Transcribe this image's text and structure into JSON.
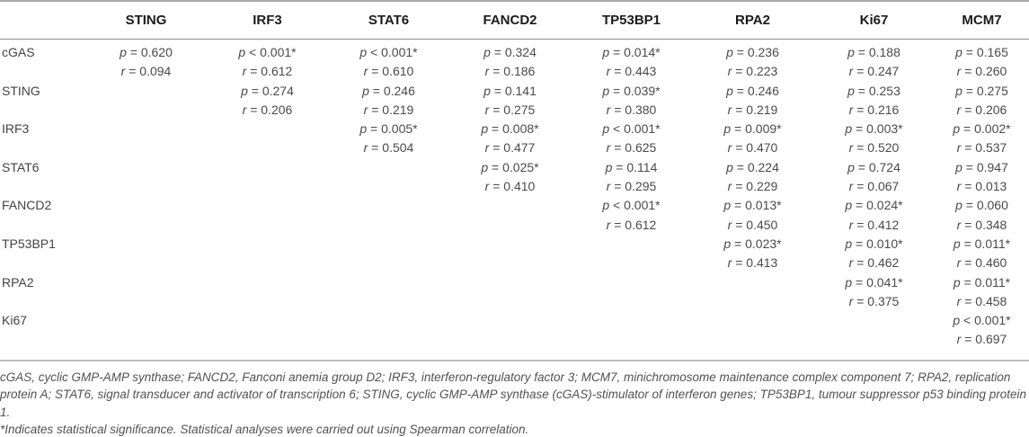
{
  "colors": {
    "background": "#ffffff",
    "header_text": "#1b1b1b",
    "body_text": "#4a4a4a",
    "footnote_text": "#525252",
    "border_top": "#a8a8a8",
    "border_header": "#8f8f8f",
    "border_bottom": "#bcbcbc"
  },
  "table": {
    "corner_label": "",
    "columns": [
      "STING",
      "IRF3",
      "STAT6",
      "FANCD2",
      "TP53BP1",
      "RPA2",
      "Ki67",
      "MCM7"
    ],
    "rows": [
      {
        "label": "cGAS",
        "cells": [
          [
            "p = 0.620",
            "r = 0.094"
          ],
          [
            "p < 0.001*",
            "r = 0.612"
          ],
          [
            "p < 0.001*",
            "r = 0.610"
          ],
          [
            "p = 0.324",
            "r = 0.186"
          ],
          [
            "p = 0.014*",
            "r = 0.443"
          ],
          [
            "p = 0.236",
            "r = 0.223"
          ],
          [
            "p = 0.188",
            "r = 0.247"
          ],
          [
            "p = 0.165",
            "r = 0.260"
          ]
        ]
      },
      {
        "label": "STING",
        "cells": [
          null,
          [
            "p = 0.274",
            "r = 0.206"
          ],
          [
            "p = 0.246",
            "r = 0.219"
          ],
          [
            "p = 0.141",
            "r = 0.275"
          ],
          [
            "p = 0.039*",
            "r = 0.380"
          ],
          [
            "p = 0.246",
            "r = 0.219"
          ],
          [
            "p = 0.253",
            "r = 0.216"
          ],
          [
            "p = 0.275",
            "r = 0.206"
          ]
        ]
      },
      {
        "label": "IRF3",
        "cells": [
          null,
          null,
          [
            "p = 0.005*",
            "r = 0.504"
          ],
          [
            "p = 0.008*",
            "r = 0.477"
          ],
          [
            "p < 0.001*",
            "r = 0.625"
          ],
          [
            "p = 0.009*",
            "r = 0.470"
          ],
          [
            "p = 0.003*",
            "r = 0.520"
          ],
          [
            "p = 0.002*",
            "r = 0.537"
          ]
        ]
      },
      {
        "label": "STAT6",
        "cells": [
          null,
          null,
          null,
          [
            "p = 0.025*",
            "r = 0.410"
          ],
          [
            "p = 0.114",
            "r = 0.295"
          ],
          [
            "p = 0.224",
            "r = 0.229"
          ],
          [
            "p = 0.724",
            "r = 0.067"
          ],
          [
            "p = 0.947",
            "r = 0.013"
          ]
        ]
      },
      {
        "label": "FANCD2",
        "cells": [
          null,
          null,
          null,
          null,
          [
            "p < 0.001*",
            "r = 0.612"
          ],
          [
            "p = 0.013*",
            "r = 0.450"
          ],
          [
            "p = 0.024*",
            "r = 0.412"
          ],
          [
            "p = 0.060",
            "r = 0.348"
          ]
        ]
      },
      {
        "label": "TP53BP1",
        "cells": [
          null,
          null,
          null,
          null,
          null,
          [
            "p = 0.023*",
            "r = 0.413"
          ],
          [
            "p = 0.010*",
            "r = 0.462"
          ],
          [
            "p = 0.011*",
            "r = 0.460"
          ]
        ]
      },
      {
        "label": "RPA2",
        "cells": [
          null,
          null,
          null,
          null,
          null,
          null,
          [
            "p = 0.041*",
            "r = 0.375"
          ],
          [
            "p = 0.011*",
            "r = 0.458"
          ]
        ]
      },
      {
        "label": "Ki67",
        "cells": [
          null,
          null,
          null,
          null,
          null,
          null,
          null,
          [
            "p < 0.001*",
            "r = 0.697"
          ]
        ]
      }
    ]
  },
  "footnotes": {
    "abbreviations": "cGAS, cyclic GMP-AMP synthase; FANCD2, Fanconi anemia group D2; IRF3, interferon-regulatory factor 3; MCM7, minichromosome maintenance complex component 7; RPA2, replication protein A; STAT6, signal transducer and activator of transcription 6; STING, cyclic GMP-AMP synthase (cGAS)-stimulator of interferon genes; TP53BP1, tumour suppressor p53 binding protein 1.",
    "significance": "*Indicates statistical significance. Statistical analyses were carried out using Spearman correlation."
  }
}
